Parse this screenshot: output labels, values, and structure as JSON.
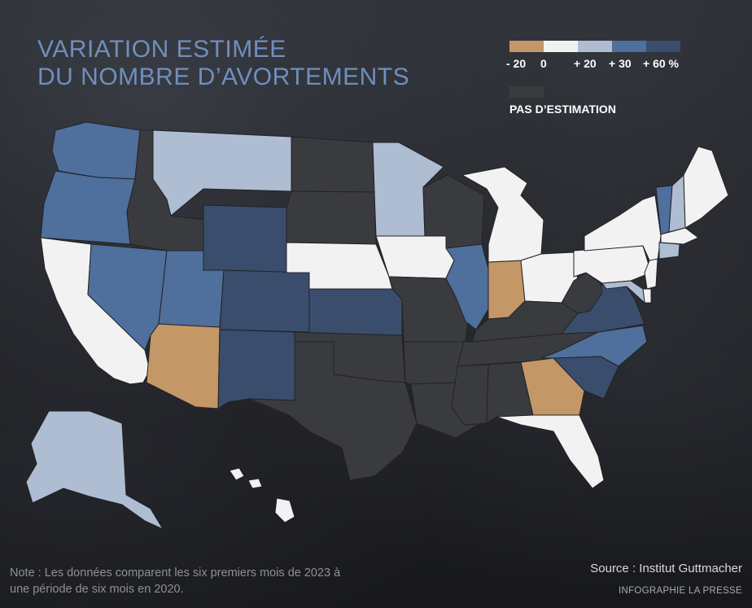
{
  "title": {
    "line1": "VARIATION ESTIMÉE",
    "line2": "DU NOMBRE D’AVORTEMENTS"
  },
  "legend": {
    "labels": [
      "- 20",
      "0",
      "+ 20",
      "+ 30",
      "+ 60 %"
    ],
    "colors": [
      "#c49766",
      "#f2f2f2",
      "#aebdd2",
      "#4f6f9c",
      "#3a4d6d"
    ],
    "no_data_label": "PAS D’ESTIMATION",
    "no_data_color": "#3a3b3f"
  },
  "states": {
    "WA": {
      "category": "+30"
    },
    "OR": {
      "category": "+30"
    },
    "CA": {
      "category": "0"
    },
    "NV": {
      "category": "+30"
    },
    "ID": {
      "category": "no-estimate"
    },
    "MT": {
      "category": "+20"
    },
    "WY": {
      "category": "+60"
    },
    "UT": {
      "category": "+30"
    },
    "AZ": {
      "category": "-20"
    },
    "CO": {
      "category": "+60"
    },
    "NM": {
      "category": "+60"
    },
    "ND": {
      "category": "no-estimate"
    },
    "SD": {
      "category": "no-estimate"
    },
    "NE": {
      "category": "0"
    },
    "KS": {
      "category": "+60"
    },
    "OK": {
      "category": "no-estimate"
    },
    "TX": {
      "category": "no-estimate"
    },
    "MN": {
      "category": "+20"
    },
    "IA": {
      "category": "0"
    },
    "MO": {
      "category": "no-estimate"
    },
    "AR": {
      "category": "no-estimate"
    },
    "LA": {
      "category": "no-estimate"
    },
    "WI": {
      "category": "no-estimate"
    },
    "IL": {
      "category": "+30"
    },
    "IN": {
      "category": "-20"
    },
    "MI": {
      "category": "0"
    },
    "OH": {
      "category": "0"
    },
    "KY": {
      "category": "no-estimate"
    },
    "TN": {
      "category": "no-estimate"
    },
    "MS": {
      "category": "no-estimate"
    },
    "AL": {
      "category": "no-estimate"
    },
    "GA": {
      "category": "-20"
    },
    "FL": {
      "category": "0"
    },
    "SC": {
      "category": "+60"
    },
    "NC": {
      "category": "+30"
    },
    "VA": {
      "category": "+60"
    },
    "WV": {
      "category": "no-estimate"
    },
    "PA": {
      "category": "0"
    },
    "NY": {
      "category": "0"
    },
    "VT": {
      "category": "+30"
    },
    "NH": {
      "category": "+20"
    },
    "ME": {
      "category": "0"
    },
    "MA": {
      "category": "0"
    },
    "CT": {
      "category": "+20"
    },
    "NJ": {
      "category": "0"
    },
    "MD": {
      "category": "+20"
    },
    "DE": {
      "category": "0"
    },
    "AK": {
      "category": "+20"
    },
    "HI": {
      "category": "0"
    }
  },
  "note": "Note : Les données comparent les six premiers mois de 2023 à une période de six mois en 2020.",
  "source": "Source : Institut Guttmacher",
  "credit": "INFOGRAPHIE LA PRESSE"
}
